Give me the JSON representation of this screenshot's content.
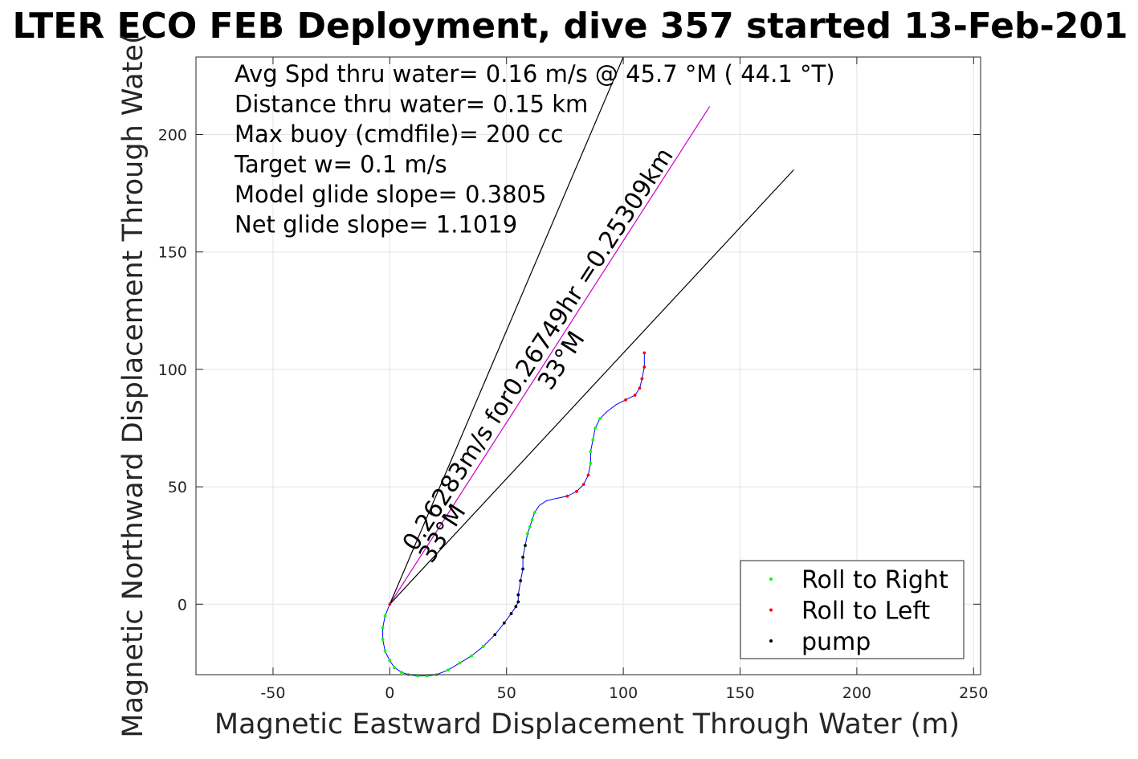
{
  "chart_data": {
    "type": "scatter",
    "title": "LTER ECO FEB Deployment, dive 357 started 13-Feb-201",
    "xlabel": "Magnetic Eastward Displacement Through Water (m)",
    "ylabel": "Magnetic Northward Displacement Through Wate(",
    "xlim": [
      -83,
      253
    ],
    "ylim": [
      -30,
      233
    ],
    "xticks": [
      -50,
      0,
      50,
      100,
      150,
      200,
      250
    ],
    "yticks": [
      0,
      50,
      100,
      150,
      200
    ],
    "xtick_labels": [
      "-50",
      "0",
      "50",
      "100",
      "150",
      "200",
      "250"
    ],
    "ytick_labels": [
      "0",
      "50",
      "100",
      "150",
      "200"
    ],
    "grid": true,
    "info_lines": [
      "Avg Spd thru water=  0.16 m/s @  45.7 °M ( 44.1 °T)",
      "Distance thru water=  0.15 km",
      "Max buoy (cmdfile)= 200 cc",
      "Target w= 0.1 m/s",
      "Model glide slope= 0.3805",
      "Net glide slope= 1.1019"
    ],
    "annotations": [
      {
        "text": "0.26283m/s for0.26749hr =0.25309km",
        "x": 11,
        "y": 22,
        "angle_deg": 57,
        "direction": "33°M"
      },
      {
        "text": "33°M",
        "x": 18,
        "y": 17,
        "angle_deg": 57
      }
    ],
    "reference_lines": [
      {
        "name": "heading",
        "from": [
          0,
          0
        ],
        "to": [
          137,
          212
        ],
        "color": "#cc00cc"
      },
      {
        "name": "left-bound",
        "from": [
          0,
          0
        ],
        "to": [
          100,
          233
        ],
        "color": "#000000"
      },
      {
        "name": "right-bound",
        "from": [
          0,
          0
        ],
        "to": [
          173,
          185
        ],
        "color": "#000000"
      }
    ],
    "track": {
      "color": "#0000ff",
      "x": [
        0,
        -2,
        -3,
        -3,
        -2,
        0,
        2,
        5,
        8,
        12,
        16,
        20,
        25,
        30,
        35,
        40,
        45,
        49,
        52,
        54,
        55,
        55,
        56,
        57,
        57,
        58,
        59,
        60,
        61,
        62,
        64,
        67,
        71,
        76,
        80,
        83,
        85,
        86,
        86,
        87,
        88,
        90,
        93,
        97,
        101,
        105,
        107,
        108,
        109,
        109
      ],
      "y": [
        0,
        -5,
        -10,
        -15,
        -20,
        -24,
        -27,
        -29,
        -30,
        -30.5,
        -30.5,
        -30,
        -28,
        -25,
        -22,
        -18,
        -13,
        -8,
        -4,
        -1,
        1,
        4,
        10,
        15,
        20,
        25,
        30,
        33,
        36,
        39,
        42,
        44,
        45,
        46,
        48,
        51,
        55,
        60,
        65,
        70,
        75,
        79,
        82,
        85,
        87,
        89,
        92,
        96,
        101,
        107
      ]
    },
    "series": [
      {
        "name": "Roll to Right",
        "color": "#00ff00",
        "marker": "dot",
        "x": [
          -2,
          -3,
          -3,
          -2,
          0,
          2,
          5,
          8,
          12,
          16,
          20,
          25,
          30,
          35,
          40,
          58,
          59,
          60,
          61,
          62,
          86,
          86,
          87,
          88,
          90
        ],
        "y": [
          -5,
          -10,
          -15,
          -20,
          -24,
          -27,
          -29,
          -30,
          -30.5,
          -30.5,
          -30,
          -28,
          -25,
          -22,
          -18,
          25,
          30,
          33,
          36,
          39,
          60,
          65,
          70,
          75,
          79
        ]
      },
      {
        "name": "Roll to Left",
        "color": "#ff0000",
        "marker": "dot",
        "x": [
          0,
          76,
          80,
          83,
          85,
          101,
          105,
          107,
          108,
          109,
          109
        ],
        "y": [
          0,
          46,
          48,
          51,
          55,
          87,
          89,
          92,
          96,
          101,
          107
        ]
      },
      {
        "name": "pump",
        "color": "#000000",
        "marker": "dot",
        "x": [
          45,
          49,
          52,
          54,
          55,
          55,
          56,
          57,
          57,
          58
        ],
        "y": [
          -13,
          -8,
          -4,
          -1,
          1,
          4,
          10,
          15,
          20,
          25
        ]
      }
    ],
    "legend": {
      "position": "bottom-right",
      "entries": [
        "Roll to Right",
        "Roll to Left",
        "pump"
      ]
    }
  }
}
